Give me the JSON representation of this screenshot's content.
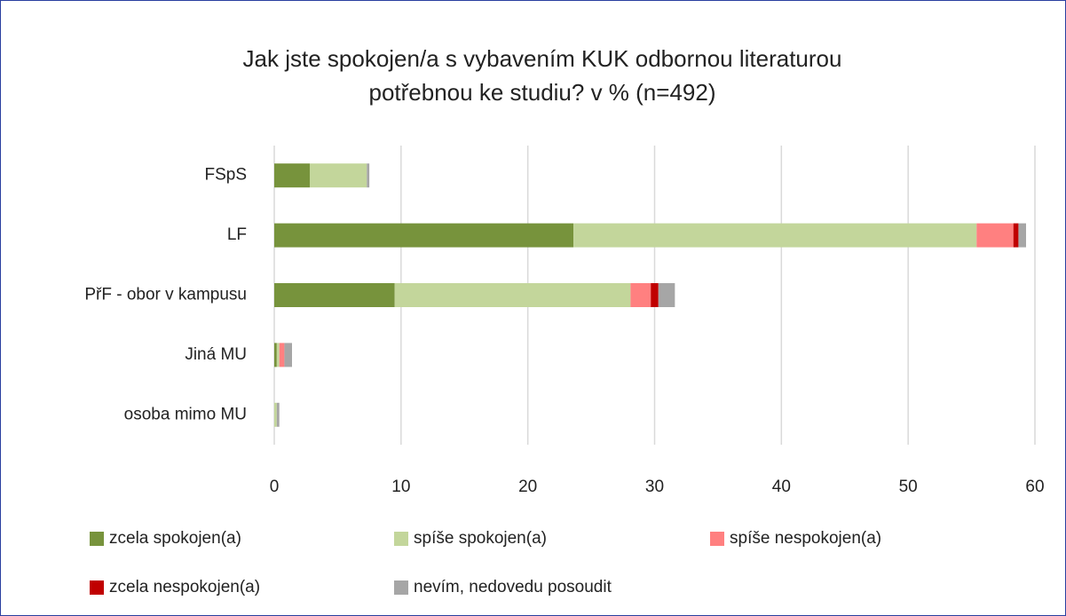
{
  "chart_data": {
    "type": "stacked_bar_horizontal",
    "title": "Jak jste spokojen/a s vybavením KUK odbornou literaturou potřebnou ke studiu? v % (n=492)",
    "categories": [
      "FSpS",
      "LF",
      "PřF - obor v kampusu",
      "Jiná MU",
      "osoba mimo MU"
    ],
    "series": [
      {
        "name": "zcela spokojen(a)",
        "color": "#77933c",
        "values": [
          2.8,
          23.6,
          9.5,
          0.2,
          0
        ]
      },
      {
        "name": "spíše spokojen(a)",
        "color": "#c3d69b",
        "values": [
          4.5,
          31.8,
          18.6,
          0.2,
          0.2
        ]
      },
      {
        "name": "spíše nespokojen(a)",
        "color": "#ff8080",
        "values": [
          0,
          2.9,
          1.6,
          0.4,
          0
        ]
      },
      {
        "name": "zcela nespokojen(a)",
        "color": "#c00000",
        "values": [
          0,
          0.4,
          0.6,
          0,
          0
        ]
      },
      {
        "name": "nevím, nedovedu posoudit",
        "color": "#a6a6a6",
        "values": [
          0.2,
          0.6,
          1.3,
          0.6,
          0.2
        ]
      }
    ],
    "xlim": [
      0,
      60
    ],
    "xticks": [
      0,
      10,
      20,
      30,
      40,
      50,
      60
    ],
    "grid": true
  }
}
